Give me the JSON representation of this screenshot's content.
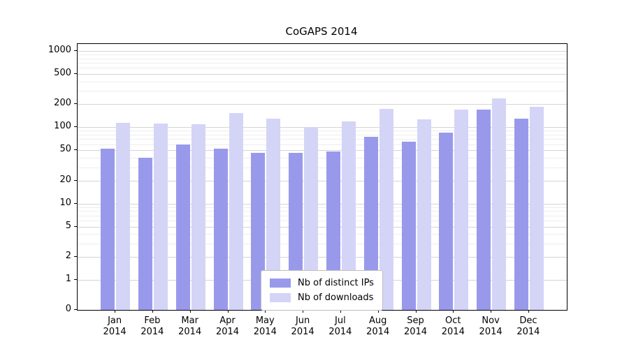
{
  "chart_data": {
    "type": "bar",
    "title": "CoGAPS 2014",
    "year": "2014",
    "categories": [
      "Jan",
      "Feb",
      "Mar",
      "Apr",
      "May",
      "Jun",
      "Jul",
      "Aug",
      "Sep",
      "Oct",
      "Nov",
      "Dec"
    ],
    "series": [
      {
        "name": "Nb of distinct IPs",
        "color": "#9999ec",
        "values": [
          52,
          40,
          60,
          53,
          46,
          46,
          48,
          75,
          65,
          85,
          170,
          130
        ]
      },
      {
        "name": "Nb of downloads",
        "color": "#d4d4f7",
        "values": [
          115,
          112,
          110,
          155,
          130,
          100,
          120,
          175,
          128,
          170,
          240,
          185
        ]
      }
    ],
    "yticks": [
      0,
      1,
      2,
      5,
      10,
      20,
      50,
      100,
      200,
      500,
      1000
    ],
    "yscale": "log",
    "ylim": [
      0,
      1200
    ],
    "grid": true,
    "legend_position": "bottom-center"
  }
}
